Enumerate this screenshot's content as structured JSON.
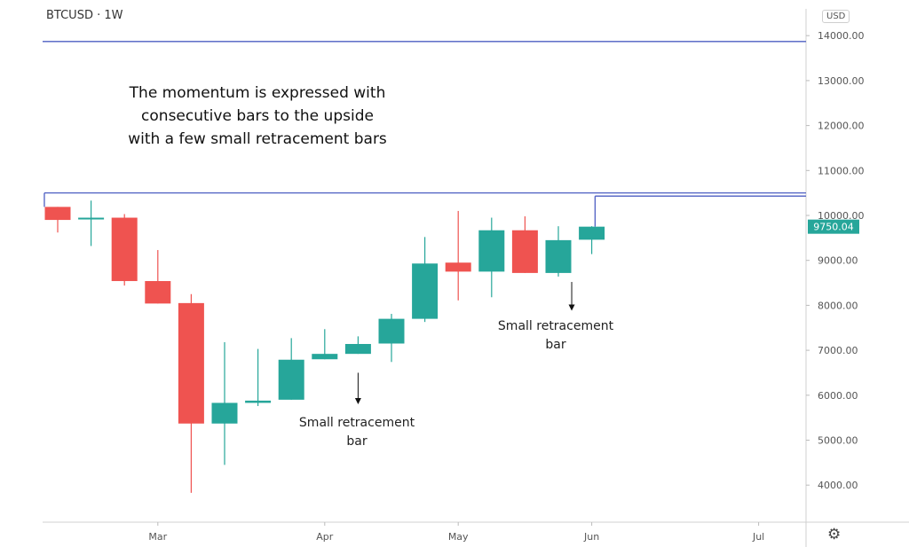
{
  "header": {
    "symbol_label": "BTCUSD · 1W",
    "currency": "USD"
  },
  "settings_icon": "gear-icon",
  "annotations": {
    "momentum": [
      "The momentum is expressed with",
      "consecutive bars to the upside",
      "with a few small retracement bars"
    ],
    "retracement_1": [
      "Small retracement",
      "bar"
    ],
    "retracement_2": [
      "Small retracement",
      "bar"
    ]
  },
  "chart_data": {
    "type": "candlestick",
    "title": "BTCUSD · 1W",
    "currency": "USD",
    "colors": {
      "up": "#26a69a",
      "down": "#ef5350",
      "levels": "#4c5ec2"
    },
    "ylim": [
      3500,
      14700
    ],
    "y_ticks": [
      {
        "value": 4000,
        "label": "4000.00"
      },
      {
        "value": 5000,
        "label": "5000.00"
      },
      {
        "value": 6000,
        "label": "6000.00"
      },
      {
        "value": 7000,
        "label": "7000.00"
      },
      {
        "value": 8000,
        "label": "8000.00"
      },
      {
        "value": 9000,
        "label": "9000.00"
      },
      {
        "value": 10000,
        "label": "10000.00"
      },
      {
        "value": 11000,
        "label": "11000.00"
      },
      {
        "value": 12000,
        "label": "12000.00"
      },
      {
        "value": 13000,
        "label": "13000.00"
      },
      {
        "value": 14000,
        "label": "14000.00"
      }
    ],
    "x_ticks": [
      {
        "index": 3,
        "label": "Mar"
      },
      {
        "index": 8,
        "label": "Apr"
      },
      {
        "index": 12,
        "label": "May"
      },
      {
        "index": 16,
        "label": "Jun"
      },
      {
        "index": 21,
        "label": "Jul"
      }
    ],
    "last_price": {
      "value": 9750.04,
      "label": "9750.04"
    },
    "levels": [
      {
        "price": 13870,
        "from_index": -1,
        "to_index": 23
      },
      {
        "price": 10500,
        "from_index": -0.4,
        "to_index": 23,
        "start_tick_to": 10190
      },
      {
        "price": 10430,
        "from_index": 16.1,
        "to_index": 23,
        "start_tick_to": 9750
      }
    ],
    "arrows": [
      {
        "index": 9,
        "from": 6500,
        "to": 5800
      },
      {
        "index": 15.4,
        "from": 8520,
        "to": 7880
      }
    ],
    "candles": [
      {
        "open": 10190,
        "high": 10190,
        "low": 9620,
        "close": 9900
      },
      {
        "open": 9950,
        "high": 10330,
        "low": 9320,
        "close": 9950
      },
      {
        "open": 9950,
        "high": 10030,
        "low": 8440,
        "close": 8540
      },
      {
        "open": 8540,
        "high": 9230,
        "low": 8040,
        "close": 8040
      },
      {
        "open": 8050,
        "high": 8250,
        "low": 3830,
        "close": 5370
      },
      {
        "open": 5370,
        "high": 7180,
        "low": 4450,
        "close": 5830
      },
      {
        "open": 5830,
        "high": 7030,
        "low": 5760,
        "close": 5880
      },
      {
        "open": 5900,
        "high": 7270,
        "low": 5900,
        "close": 6790
      },
      {
        "open": 6800,
        "high": 7470,
        "low": 6800,
        "close": 6920
      },
      {
        "open": 6920,
        "high": 7310,
        "low": 6920,
        "close": 7140
      },
      {
        "open": 7150,
        "high": 7810,
        "low": 6740,
        "close": 7700
      },
      {
        "open": 7700,
        "high": 9520,
        "low": 7630,
        "close": 8930
      },
      {
        "open": 8950,
        "high": 10100,
        "low": 8110,
        "close": 8750
      },
      {
        "open": 8750,
        "high": 9950,
        "low": 8180,
        "close": 9670
      },
      {
        "open": 9670,
        "high": 9980,
        "low": 8720,
        "close": 8720
      },
      {
        "open": 8720,
        "high": 9760,
        "low": 8640,
        "close": 9450
      },
      {
        "open": 9460,
        "high": 9760,
        "low": 9140,
        "close": 9750
      }
    ]
  }
}
